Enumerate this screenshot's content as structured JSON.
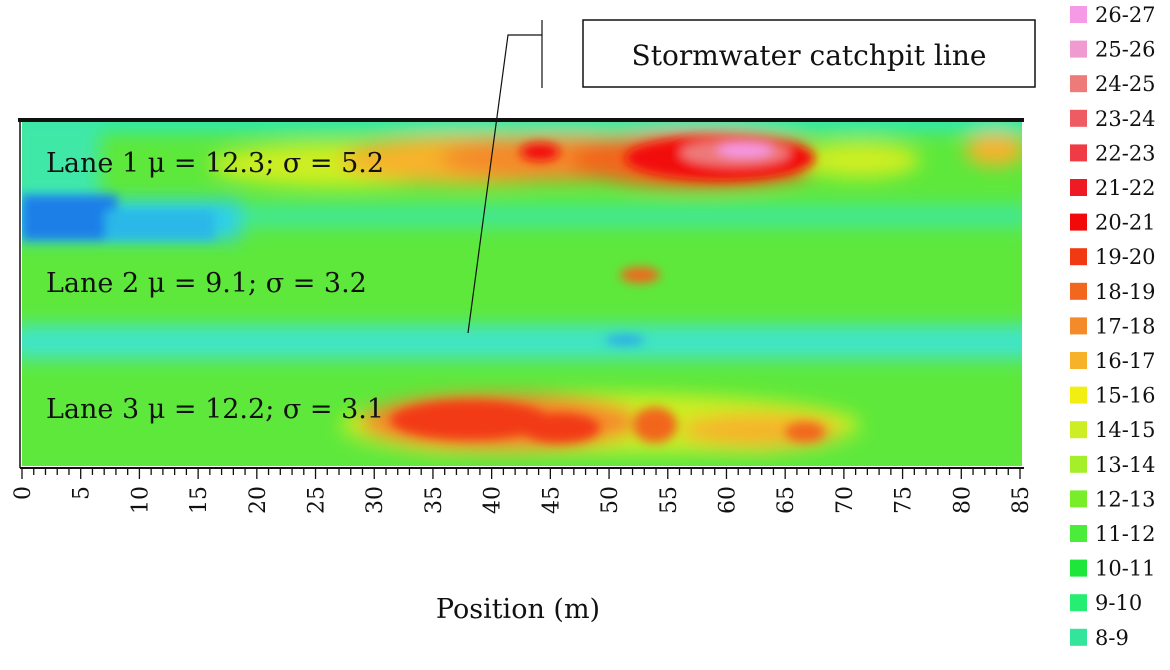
{
  "chart_data": {
    "type": "heatmap",
    "title": "",
    "xlabel": "Position (m)",
    "ylabel": "",
    "xlim": [
      0,
      85
    ],
    "x_ticks": [
      0,
      5,
      10,
      15,
      20,
      25,
      30,
      35,
      40,
      45,
      50,
      55,
      60,
      65,
      70,
      75,
      80,
      85
    ],
    "x_tick_labels": [
      "0",
      "5",
      "10",
      "15",
      "20",
      "25",
      "30",
      "35",
      "40",
      "45",
      "50",
      "55",
      "60",
      "65",
      "70",
      "75",
      "80",
      "85"
    ],
    "lanes": [
      {
        "label": "Lane 1 μ = 12.3; σ = 5.2",
        "mean": 12.3,
        "sd": 5.2
      },
      {
        "label": "Lane 2 μ = 9.1; σ = 3.2",
        "mean": 9.1,
        "sd": 3.2
      },
      {
        "label": "Lane 3 μ = 12.2; σ = 3.1",
        "mean": 12.2,
        "sd": 3.1
      }
    ],
    "annotation": {
      "text": "Stormwater catchpit line",
      "x": 38
    },
    "legend": {
      "placement": "right",
      "entries": [
        {
          "label": "26-27",
          "color": "#f49ae6"
        },
        {
          "label": "25-26",
          "color": "#ef9ad0"
        },
        {
          "label": "24-25",
          "color": "#ee7a7a"
        },
        {
          "label": "23-24",
          "color": "#ee5b63"
        },
        {
          "label": "22-23",
          "color": "#ee3b45"
        },
        {
          "label": "21-22",
          "color": "#ee1b25"
        },
        {
          "label": "20-21",
          "color": "#f20a0a"
        },
        {
          "label": "19-20",
          "color": "#f23a12"
        },
        {
          "label": "18-19",
          "color": "#f2661e"
        },
        {
          "label": "17-18",
          "color": "#f58a2a"
        },
        {
          "label": "16-17",
          "color": "#f7b22a"
        },
        {
          "label": "15-16",
          "color": "#f2ee12"
        },
        {
          "label": "14-15",
          "color": "#cdee24"
        },
        {
          "label": "13-14",
          "color": "#a5ee2a"
        },
        {
          "label": "12-13",
          "color": "#78ee2a"
        },
        {
          "label": "11-12",
          "color": "#4aee3a"
        },
        {
          "label": "10-11",
          "color": "#1fe63a"
        },
        {
          "label": "9-10",
          "color": "#26ee72"
        },
        {
          "label": "8-9",
          "color": "#32e59a"
        }
      ]
    }
  }
}
